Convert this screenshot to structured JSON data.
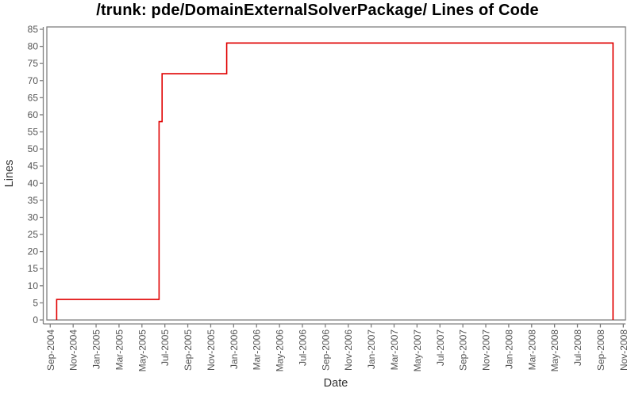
{
  "chart_data": {
    "type": "line",
    "line_style": "step",
    "title": "/trunk: pde/DomainExternalSolverPackage/ Lines of Code",
    "xlabel": "Date",
    "ylabel": "Lines",
    "ylim": [
      0,
      85
    ],
    "y_tick_step": 5,
    "y_ticks": [
      0,
      5,
      10,
      15,
      20,
      25,
      30,
      35,
      40,
      45,
      50,
      55,
      60,
      65,
      70,
      75,
      80,
      85
    ],
    "x_ticks": [
      "Sep-2004",
      "Nov-2004",
      "Jan-2005",
      "Mar-2005",
      "May-2005",
      "Jul-2005",
      "Sep-2005",
      "Nov-2005",
      "Jan-2006",
      "Mar-2006",
      "May-2006",
      "Jul-2006",
      "Sep-2006",
      "Nov-2006",
      "Jan-2007",
      "Mar-2007",
      "May-2007",
      "Jul-2007",
      "Sep-2007",
      "Nov-2007",
      "Jan-2008",
      "Mar-2008",
      "May-2008",
      "Jul-2008",
      "Sep-2008",
      "Nov-2008"
    ],
    "x_tick_interval_months": 2,
    "grid": false,
    "legend": false,
    "axis_color": "#808080",
    "tick_label_color": "#545454",
    "series": [
      {
        "name": "Lines of Code",
        "color": "#e00000",
        "points": [
          {
            "date": "2004-09-18",
            "value": 0
          },
          {
            "date": "2004-09-18",
            "value": 6
          },
          {
            "date": "2005-06-16",
            "value": 58
          },
          {
            "date": "2005-06-24",
            "value": 72
          },
          {
            "date": "2005-12-13",
            "value": 81
          },
          {
            "date": "2008-10-04",
            "value": 0
          }
        ]
      }
    ]
  }
}
